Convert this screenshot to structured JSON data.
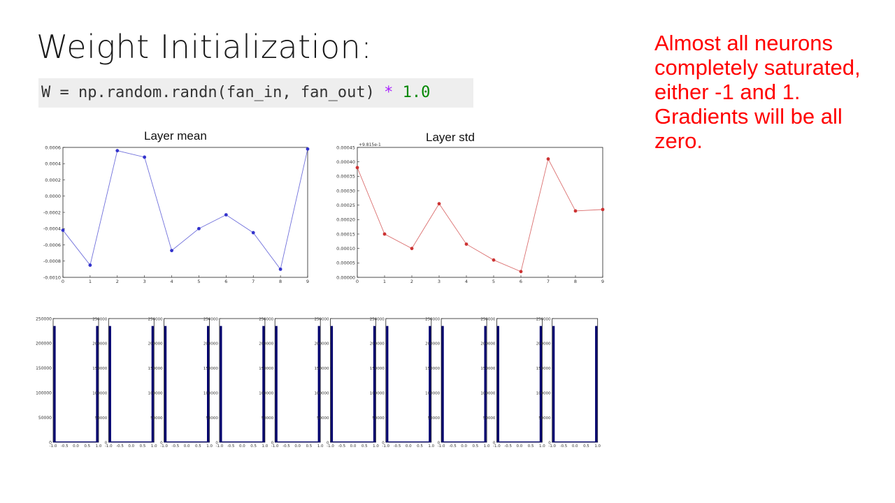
{
  "slide": {
    "title": "Weight Initialization:",
    "code": {
      "prefix": "W = np.random.randn(fan_in, fan_out) ",
      "op": "*",
      "value": " 1.0"
    },
    "note": "Almost all neurons completely saturated, either -1 and 1. Gradients will be all zero."
  },
  "chart_data": [
    {
      "type": "line",
      "title": "Layer mean",
      "x": [
        0,
        1,
        2,
        3,
        4,
        5,
        6,
        7,
        8,
        9
      ],
      "y": [
        -0.00042,
        -0.00085,
        0.00056,
        0.00048,
        -0.00067,
        -0.0004,
        -0.00023,
        -0.00045,
        -0.0009,
        0.00058
      ],
      "ylim": [
        -0.001,
        0.0006
      ],
      "xlim": [
        0,
        9
      ],
      "yticks": [
        "0.0006",
        "0.0004",
        "0.0002",
        "0.0000",
        "-0.0002",
        "-0.0004",
        "-0.0006",
        "-0.0008",
        "-0.0010"
      ],
      "xticks": [
        "0",
        "1",
        "2",
        "3",
        "4",
        "5",
        "6",
        "7",
        "8",
        "9"
      ],
      "color": "#3333cc"
    },
    {
      "type": "line",
      "title": "Layer std",
      "offset_label": "+9.815e-1",
      "x": [
        0,
        1,
        2,
        3,
        4,
        5,
        6,
        7,
        8,
        9
      ],
      "y": [
        0.00038,
        0.00015,
        0.0001,
        0.000255,
        0.000115,
        6e-05,
        2e-05,
        0.00041,
        0.00023,
        0.000235
      ],
      "ylim": [
        0,
        0.00045
      ],
      "xlim": [
        0,
        9
      ],
      "yticks": [
        "0.00045",
        "0.00040",
        "0.00035",
        "0.00030",
        "0.00025",
        "0.00020",
        "0.00015",
        "0.00010",
        "0.00005",
        "0.00000"
      ],
      "xticks": [
        "0",
        "1",
        "2",
        "3",
        "4",
        "5",
        "6",
        "7",
        "8",
        "9"
      ],
      "color": "#cc3333"
    },
    {
      "type": "bar",
      "title": "",
      "panels": 10,
      "x_edges": [
        -1.0,
        1.0
      ],
      "edge_counts": [
        235000,
        235000
      ],
      "ylim": [
        0,
        250000
      ],
      "yticks": [
        "250000",
        "200000",
        "150000",
        "100000",
        "50000",
        "0"
      ],
      "yticks_short": [
        "250000",
        "200000",
        "150000",
        "100000",
        "50000",
        "0"
      ],
      "xticks": [
        "-1.0",
        "-0.5",
        "0.0",
        "0.5",
        "1.0"
      ],
      "color": "#00006e"
    }
  ]
}
